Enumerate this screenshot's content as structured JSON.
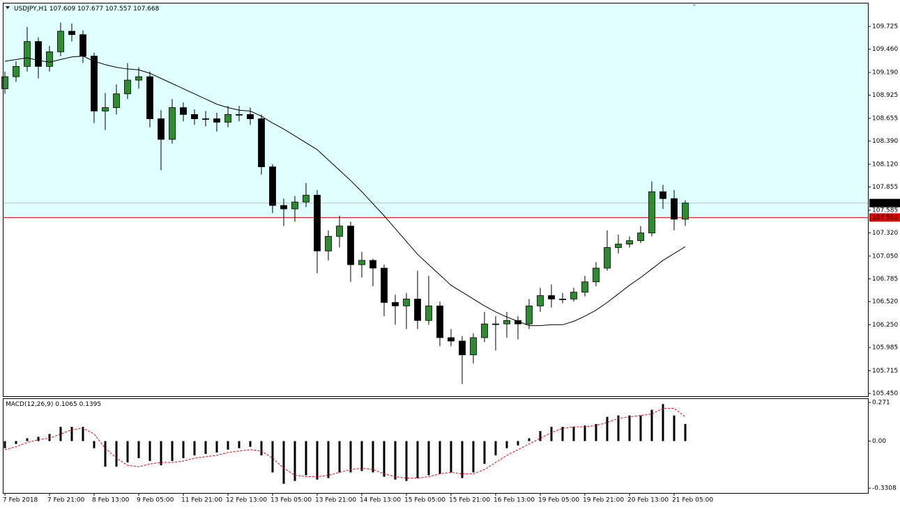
{
  "chart_data": [
    {
      "type": "candlestick",
      "title": "USDJPY,H1",
      "header_values": [
        107.609,
        107.677,
        107.557,
        107.668
      ],
      "x": [
        0,
        4,
        8,
        12,
        16,
        20,
        24,
        28,
        32,
        36,
        40,
        44,
        48,
        52,
        56,
        60,
        64,
        68,
        72,
        76,
        80,
        84,
        88,
        92,
        96,
        100,
        104,
        108,
        112,
        116,
        120,
        124,
        128,
        132,
        136,
        140,
        144,
        148,
        152,
        156,
        160,
        164,
        168,
        172,
        176,
        180,
        184,
        188,
        192,
        196,
        200,
        204,
        208,
        212,
        216,
        220,
        224,
        228,
        232,
        236,
        240,
        244
      ],
      "open": [
        109.0,
        109.14,
        109.26,
        109.55,
        109.26,
        109.43,
        109.67,
        109.63,
        109.38,
        108.74,
        108.78,
        108.94,
        109.1,
        109.14,
        108.65,
        108.41,
        108.78,
        108.7,
        108.65,
        108.65,
        108.61,
        108.7,
        108.7,
        108.65,
        108.09,
        107.64,
        107.6,
        107.68,
        107.76,
        107.11,
        107.28,
        107.4,
        106.95,
        107.0,
        106.91,
        106.51,
        106.47,
        106.55,
        106.3,
        106.47,
        106.1,
        106.06,
        105.9,
        106.1,
        106.26,
        106.26,
        106.3,
        106.26,
        106.47,
        106.59,
        106.55,
        106.55,
        106.63,
        106.75,
        106.91,
        107.15,
        107.19,
        107.23,
        107.32,
        107.8,
        107.72,
        107.48
      ],
      "high": [
        109.2,
        109.32,
        109.72,
        109.6,
        109.5,
        109.77,
        109.76,
        109.68,
        109.42,
        108.95,
        109.05,
        109.3,
        109.25,
        109.2,
        108.75,
        108.88,
        108.84,
        108.76,
        108.74,
        108.72,
        108.8,
        108.8,
        108.78,
        108.7,
        108.12,
        107.72,
        107.75,
        107.9,
        107.82,
        107.35,
        107.52,
        107.45,
        107.1,
        107.02,
        106.95,
        106.6,
        106.62,
        106.88,
        106.82,
        106.52,
        106.2,
        106.12,
        106.15,
        106.4,
        106.35,
        106.4,
        106.35,
        106.55,
        106.68,
        106.72,
        106.62,
        106.68,
        106.82,
        106.98,
        107.35,
        107.3,
        107.28,
        107.4,
        107.92,
        107.88,
        107.82,
        107.7
      ],
      "low": [
        108.94,
        109.08,
        109.2,
        109.12,
        109.2,
        109.38,
        109.55,
        109.3,
        108.6,
        108.52,
        108.7,
        108.88,
        109.0,
        108.55,
        108.05,
        108.36,
        108.62,
        108.58,
        108.56,
        108.5,
        108.55,
        108.62,
        108.58,
        108.0,
        107.55,
        107.4,
        107.45,
        107.62,
        106.85,
        107.0,
        107.15,
        106.75,
        106.8,
        106.7,
        106.35,
        106.25,
        106.2,
        106.2,
        106.25,
        106.0,
        106.0,
        105.56,
        105.8,
        106.05,
        105.95,
        106.1,
        106.08,
        106.2,
        106.4,
        106.45,
        106.5,
        106.52,
        106.58,
        106.7,
        106.88,
        107.08,
        107.15,
        107.2,
        107.28,
        107.6,
        107.35,
        107.4
      ],
      "close": [
        109.14,
        109.26,
        109.55,
        109.26,
        109.43,
        109.67,
        109.63,
        109.38,
        108.74,
        108.78,
        108.94,
        109.1,
        109.14,
        108.65,
        108.41,
        108.78,
        108.7,
        108.65,
        108.65,
        108.61,
        108.7,
        108.7,
        108.65,
        108.09,
        107.64,
        107.6,
        107.68,
        107.76,
        107.11,
        107.28,
        107.4,
        106.95,
        107.0,
        106.91,
        106.51,
        106.47,
        106.55,
        106.3,
        106.47,
        106.1,
        106.06,
        105.9,
        106.1,
        106.26,
        106.26,
        106.3,
        106.26,
        106.47,
        106.59,
        106.55,
        106.55,
        106.63,
        106.75,
        106.91,
        107.15,
        107.19,
        107.23,
        107.32,
        107.8,
        107.72,
        107.48,
        107.668
      ],
      "up_color": "#2e8b2e",
      "down_color": "#000000",
      "ma": {
        "color": "#000000",
        "values": [
          109.32,
          109.34,
          109.36,
          109.33,
          109.31,
          109.34,
          109.37,
          109.38,
          109.32,
          109.28,
          109.25,
          109.23,
          109.22,
          109.18,
          109.12,
          109.06,
          109.0,
          108.94,
          108.88,
          108.82,
          108.78,
          108.75,
          108.74,
          108.68,
          108.6,
          108.53,
          108.45,
          108.37,
          108.29,
          108.17,
          108.05,
          107.93,
          107.8,
          107.66,
          107.52,
          107.37,
          107.22,
          107.07,
          106.95,
          106.83,
          106.71,
          106.63,
          106.55,
          106.47,
          106.4,
          106.34,
          106.29,
          106.24,
          106.24,
          106.25,
          106.25,
          106.29,
          106.35,
          106.42,
          106.51,
          106.61,
          106.71,
          106.8,
          106.9,
          107.0,
          107.08,
          107.16
        ]
      },
      "zone_color": "#e0ffff",
      "level": {
        "value": 107.5,
        "label": "107.500",
        "color": "#e00000"
      },
      "current": {
        "value": 107.668,
        "color": "#000000"
      },
      "xlim": [
        -0.5,
        309.5
      ],
      "xticks": [
        {
          "value": 0,
          "label": "7 Feb 2018"
        },
        {
          "value": 16,
          "label": "7 Feb 21:00"
        },
        {
          "value": 32,
          "label": "8 Feb 13:00"
        },
        {
          "value": 48,
          "label": "9 Feb 05:00"
        },
        {
          "value": 64,
          "label": "11 Feb 21:00"
        },
        {
          "value": 80,
          "label": "12 Feb 13:00"
        },
        {
          "value": 96,
          "label": "13 Feb 05:00"
        },
        {
          "value": 112,
          "label": "13 Feb 21:00"
        },
        {
          "value": 128,
          "label": "14 Feb 13:00"
        },
        {
          "value": 144,
          "label": "15 Feb 05:00"
        },
        {
          "value": 160,
          "label": "15 Feb 21:00"
        },
        {
          "value": 176,
          "label": "16 Feb 13:00"
        },
        {
          "value": 192,
          "label": "19 Feb 05:00"
        },
        {
          "value": 208,
          "label": "19 Feb 21:00"
        },
        {
          "value": 224,
          "label": "20 Feb 13:00"
        },
        {
          "value": 240,
          "label": "21 Feb 05:00"
        }
      ],
      "ylim": [
        105.426,
        109.993
      ],
      "yticks": [
        109.725,
        {
          "value": 109.46,
          "label": "109.460"
        },
        {
          "value": 109.19,
          "label": "109.190"
        },
        108.925,
        108.655,
        {
          "value": 108.39,
          "label": "108.390"
        },
        {
          "value": 108.12,
          "label": "108.120"
        },
        107.855,
        107.585,
        {
          "value": 107.32,
          "label": "107.320"
        },
        {
          "value": 107.05,
          "label": "107.050"
        },
        106.785,
        {
          "value": 106.52,
          "label": "106.520"
        },
        {
          "value": 106.25,
          "label": "106.250"
        },
        105.985,
        105.715,
        {
          "value": 105.45,
          "label": "105.450"
        }
      ]
    },
    {
      "type": "bar",
      "title": "MACD(12,26,9)",
      "header_values": [
        0.1065,
        0.1395
      ],
      "series": [
        {
          "color": "#000000",
          "values": [
            -0.05,
            -0.02,
            0.02,
            0.03,
            0.05,
            0.1,
            0.1,
            0.1,
            -0.05,
            -0.18,
            -0.18,
            -0.15,
            -0.12,
            -0.14,
            -0.17,
            -0.14,
            -0.12,
            -0.1,
            -0.09,
            -0.08,
            -0.06,
            -0.05,
            -0.04,
            -0.1,
            -0.22,
            -0.3,
            -0.28,
            -0.24,
            -0.27,
            -0.26,
            -0.22,
            -0.22,
            -0.21,
            -0.22,
            -0.25,
            -0.27,
            -0.28,
            -0.26,
            -0.24,
            -0.23,
            -0.22,
            -0.26,
            -0.22,
            -0.16,
            -0.1,
            -0.05,
            -0.03,
            0.02,
            0.07,
            0.1,
            0.1,
            0.1,
            0.11,
            0.12,
            0.17,
            0.18,
            0.18,
            0.18,
            0.22,
            0.26,
            0.18,
            0.12
          ]
        },
        {
          "color": "#e00000",
          "style": "dashed",
          "values": [
            -0.06,
            -0.04,
            -0.01,
            0.01,
            0.02,
            0.05,
            0.08,
            0.09,
            0.05,
            -0.05,
            -0.12,
            -0.17,
            -0.18,
            -0.16,
            -0.15,
            -0.15,
            -0.14,
            -0.12,
            -0.11,
            -0.1,
            -0.08,
            -0.07,
            -0.06,
            -0.07,
            -0.12,
            -0.19,
            -0.24,
            -0.25,
            -0.25,
            -0.24,
            -0.22,
            -0.2,
            -0.19,
            -0.2,
            -0.23,
            -0.25,
            -0.26,
            -0.26,
            -0.25,
            -0.23,
            -0.22,
            -0.23,
            -0.23,
            -0.2,
            -0.15,
            -0.1,
            -0.06,
            -0.02,
            0.02,
            0.06,
            0.09,
            0.1,
            0.1,
            0.11,
            0.13,
            0.16,
            0.17,
            0.18,
            0.19,
            0.23,
            0.23,
            0.17
          ]
        }
      ],
      "ylim": [
        -0.3645,
        0.3006
      ],
      "yticks": [
        0.271,
        {
          "value": 0,
          "label": "0.00"
        },
        -0.3308
      ]
    }
  ]
}
